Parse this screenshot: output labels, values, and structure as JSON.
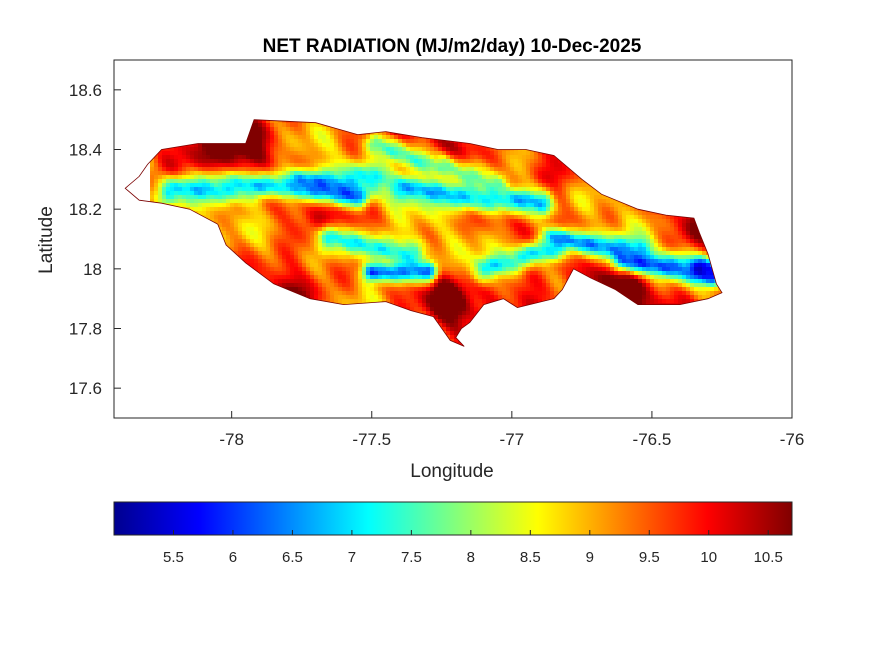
{
  "chart_data": {
    "type": "heatmap",
    "title": "NET RADIATION (MJ/m2/day) 10-Dec-2025",
    "xlabel": "Longitude",
    "ylabel": "Latitude",
    "xlim": [
      -78.42,
      -76
    ],
    "ylim": [
      17.5,
      18.7
    ],
    "x_ticks": [
      "-78",
      "-77.5",
      "-77",
      "-76.5",
      "-76"
    ],
    "y_ticks": [
      "18.6",
      "18.4",
      "18.2",
      "18",
      "17.8",
      "17.6"
    ],
    "colorbar": {
      "colormap": "jet",
      "range": [
        5.0,
        10.7
      ],
      "ticks": [
        "5.5",
        "6",
        "6.5",
        "7",
        "7.5",
        "8",
        "8.5",
        "9",
        "9.5",
        "10",
        "10.5"
      ]
    },
    "grid": false,
    "region": "Jamaica",
    "outline": [
      [
        -78.38,
        18.27
      ],
      [
        -78.33,
        18.31
      ],
      [
        -78.3,
        18.35
      ],
      [
        -78.25,
        18.4
      ],
      [
        -78.12,
        18.42
      ],
      [
        -77.95,
        18.42
      ],
      [
        -77.92,
        18.5
      ],
      [
        -77.7,
        18.49
      ],
      [
        -77.55,
        18.45
      ],
      [
        -77.45,
        18.46
      ],
      [
        -77.32,
        18.44
      ],
      [
        -77.15,
        18.42
      ],
      [
        -77.05,
        18.4
      ],
      [
        -76.95,
        18.4
      ],
      [
        -76.85,
        18.38
      ],
      [
        -76.75,
        18.3
      ],
      [
        -76.68,
        18.25
      ],
      [
        -76.55,
        18.2
      ],
      [
        -76.45,
        18.18
      ],
      [
        -76.35,
        18.17
      ],
      [
        -76.33,
        18.12
      ],
      [
        -76.3,
        18.05
      ],
      [
        -76.27,
        17.95
      ],
      [
        -76.25,
        17.92
      ],
      [
        -76.3,
        17.9
      ],
      [
        -76.4,
        17.88
      ],
      [
        -76.55,
        17.88
      ],
      [
        -76.63,
        17.93
      ],
      [
        -76.72,
        17.97
      ],
      [
        -76.78,
        18.0
      ],
      [
        -76.82,
        17.93
      ],
      [
        -76.85,
        17.9
      ],
      [
        -76.98,
        17.87
      ],
      [
        -77.03,
        17.9
      ],
      [
        -77.1,
        17.88
      ],
      [
        -77.15,
        17.82
      ],
      [
        -77.18,
        17.8
      ],
      [
        -77.2,
        17.77
      ],
      [
        -77.17,
        17.74
      ],
      [
        -77.22,
        17.76
      ],
      [
        -77.25,
        17.8
      ],
      [
        -77.28,
        17.84
      ],
      [
        -77.36,
        17.86
      ],
      [
        -77.45,
        17.89
      ],
      [
        -77.6,
        17.88
      ],
      [
        -77.72,
        17.9
      ],
      [
        -77.85,
        17.95
      ],
      [
        -77.95,
        18.02
      ],
      [
        -78.02,
        18.08
      ],
      [
        -78.05,
        18.15
      ],
      [
        -78.15,
        18.2
      ],
      [
        -78.25,
        18.22
      ],
      [
        -78.33,
        18.23
      ],
      [
        -78.38,
        18.27
      ]
    ],
    "hot_spots": [
      {
        "lon": -77.95,
        "lat": 18.45,
        "value": 10.7,
        "spread": 0.08
      },
      {
        "lon": -77.78,
        "lat": 17.93,
        "value": 10.6,
        "spread": 0.09
      },
      {
        "lon": -77.22,
        "lat": 17.88,
        "value": 10.5,
        "spread": 0.06
      },
      {
        "lon": -76.95,
        "lat": 17.92,
        "value": 10.6,
        "spread": 0.07
      },
      {
        "lon": -76.6,
        "lat": 17.93,
        "value": 10.6,
        "spread": 0.07
      },
      {
        "lon": -76.35,
        "lat": 18.14,
        "value": 10.5,
        "spread": 0.06
      },
      {
        "lon": -78.2,
        "lat": 18.35,
        "value": 10.3,
        "spread": 0.08
      },
      {
        "lon": -76.85,
        "lat": 18.35,
        "value": 10.4,
        "spread": 0.08
      },
      {
        "lon": -77.2,
        "lat": 18.42,
        "value": 10.2,
        "spread": 0.06
      }
    ],
    "cool_bands": [
      {
        "from": [
          -78.22,
          18.26
        ],
        "to": [
          -77.5,
          18.3
        ],
        "value": 7.0,
        "width": 0.035
      },
      {
        "from": [
          -77.75,
          18.28
        ],
        "to": [
          -77.55,
          18.24
        ],
        "value": 6.2,
        "width": 0.025
      },
      {
        "from": [
          -77.4,
          18.27
        ],
        "to": [
          -76.9,
          18.22
        ],
        "value": 6.8,
        "width": 0.035
      },
      {
        "from": [
          -77.65,
          18.1
        ],
        "to": [
          -77.35,
          18.05
        ],
        "value": 7.3,
        "width": 0.035
      },
      {
        "from": [
          -77.5,
          17.99
        ],
        "to": [
          -77.3,
          17.99
        ],
        "value": 6.3,
        "width": 0.025
      },
      {
        "from": [
          -77.1,
          18.0
        ],
        "to": [
          -76.85,
          18.07
        ],
        "value": 7.2,
        "width": 0.03
      },
      {
        "from": [
          -76.85,
          18.1
        ],
        "to": [
          -76.55,
          18.06
        ],
        "value": 6.6,
        "width": 0.03
      },
      {
        "from": [
          -76.6,
          18.03
        ],
        "to": [
          -76.3,
          17.99
        ],
        "value": 6.2,
        "width": 0.03
      },
      {
        "from": [
          -76.33,
          18.0
        ],
        "to": [
          -76.28,
          17.98
        ],
        "value": 5.3,
        "width": 0.02
      },
      {
        "from": [
          -77.48,
          18.42
        ],
        "to": [
          -77.3,
          18.35
        ],
        "value": 7.6,
        "width": 0.03
      },
      {
        "from": [
          -77.25,
          18.35
        ],
        "to": [
          -77.05,
          18.28
        ],
        "value": 7.8,
        "width": 0.03
      }
    ]
  }
}
